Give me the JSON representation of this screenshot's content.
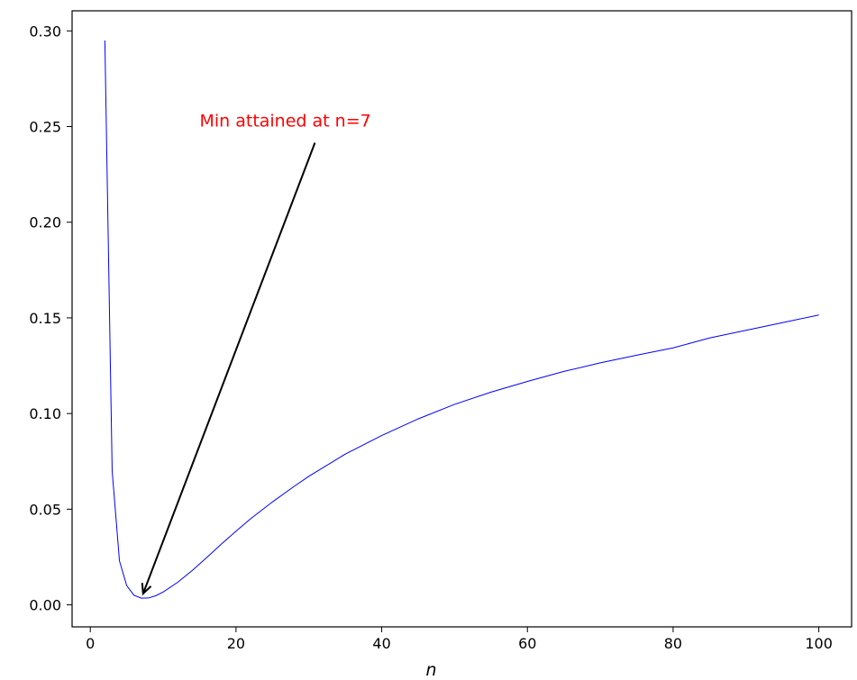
{
  "chart_data": {
    "type": "line",
    "title": "",
    "xlabel": "n",
    "ylabel": "",
    "xlim": [
      -2.5,
      104.5
    ],
    "ylim": [
      -0.0115,
      0.3105
    ],
    "xticks": [
      0,
      20,
      40,
      60,
      80,
      100
    ],
    "yticks": [
      0.0,
      0.05,
      0.1,
      0.15,
      0.2,
      0.25,
      0.3
    ],
    "ytick_labels": [
      "0.00",
      "0.05",
      "0.10",
      "0.15",
      "0.20",
      "0.25",
      "0.30"
    ],
    "grid": false,
    "series": [
      {
        "color": "#0000ff",
        "points": [
          [
            2,
            0.295
          ],
          [
            3,
            0.07
          ],
          [
            4,
            0.023
          ],
          [
            5,
            0.01
          ],
          [
            6,
            0.005
          ],
          [
            7,
            0.0035
          ],
          [
            8,
            0.0036
          ],
          [
            9,
            0.0048
          ],
          [
            10,
            0.0067
          ],
          [
            12,
            0.0118
          ],
          [
            14,
            0.018
          ],
          [
            16,
            0.0248
          ],
          [
            18,
            0.0318
          ],
          [
            20,
            0.0385
          ],
          [
            22,
            0.045
          ],
          [
            25,
            0.0538
          ],
          [
            28,
            0.062
          ],
          [
            30,
            0.0672
          ],
          [
            35,
            0.0788
          ],
          [
            40,
            0.0885
          ],
          [
            45,
            0.0972
          ],
          [
            50,
            0.1048
          ],
          [
            55,
            0.1112
          ],
          [
            60,
            0.1168
          ],
          [
            65,
            0.122
          ],
          [
            70,
            0.1265
          ],
          [
            75,
            0.1305
          ],
          [
            80,
            0.1343
          ],
          [
            85,
            0.1395
          ],
          [
            90,
            0.1435
          ],
          [
            95,
            0.1475
          ],
          [
            100,
            0.1515
          ]
        ]
      }
    ],
    "annotations": [
      {
        "text": "Min attained at n=7",
        "color": "#ff0000",
        "xy": [
          7,
          0.0035
        ],
        "xytext": [
          15,
          0.25
        ]
      }
    ]
  }
}
